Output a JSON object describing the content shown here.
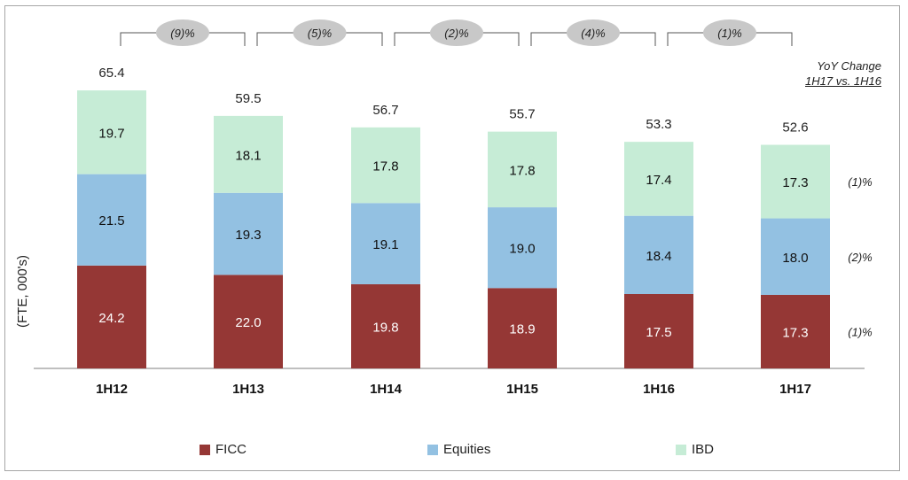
{
  "chart_data": {
    "type": "bar",
    "stacked": true,
    "categories": [
      "1H12",
      "1H13",
      "1H14",
      "1H15",
      "1H16",
      "1H17"
    ],
    "series": [
      {
        "name": "FICC",
        "values": [
          24.2,
          22.0,
          19.8,
          18.9,
          17.5,
          17.3
        ],
        "color": "#953735"
      },
      {
        "name": "Equities",
        "values": [
          21.5,
          19.3,
          19.1,
          19.0,
          18.4,
          18.0
        ],
        "color": "#93c1e2"
      },
      {
        "name": "IBD",
        "values": [
          19.7,
          18.1,
          17.8,
          17.8,
          17.4,
          17.3
        ],
        "color": "#c6ecd6"
      }
    ],
    "totals": [
      "65.4",
      "59.5",
      "56.7",
      "55.7",
      "53.3",
      "52.6"
    ],
    "value_labels": [
      [
        "24.2",
        "22.0",
        "19.8",
        "18.9",
        "17.5",
        "17.3"
      ],
      [
        "21.5",
        "19.3",
        "19.1",
        "19.0",
        "18.4",
        "18.0"
      ],
      [
        "19.7",
        "18.1",
        "17.8",
        "17.8",
        "17.4",
        "17.3"
      ]
    ],
    "period_changes": [
      "(9)%",
      "(5)%",
      "(2)%",
      "(4)%",
      "(1)%"
    ],
    "ylabel": "(FTE, 000's)",
    "ylim": [
      0,
      70
    ],
    "legend_position": "bottom",
    "grid": false,
    "yoy_header": {
      "line1": "YoY Change",
      "line2": "1H17 vs. 1H16"
    },
    "yoy_changes": {
      "IBD": "(1)%",
      "Equities": "(2)%",
      "FICC": "(1)%"
    }
  }
}
